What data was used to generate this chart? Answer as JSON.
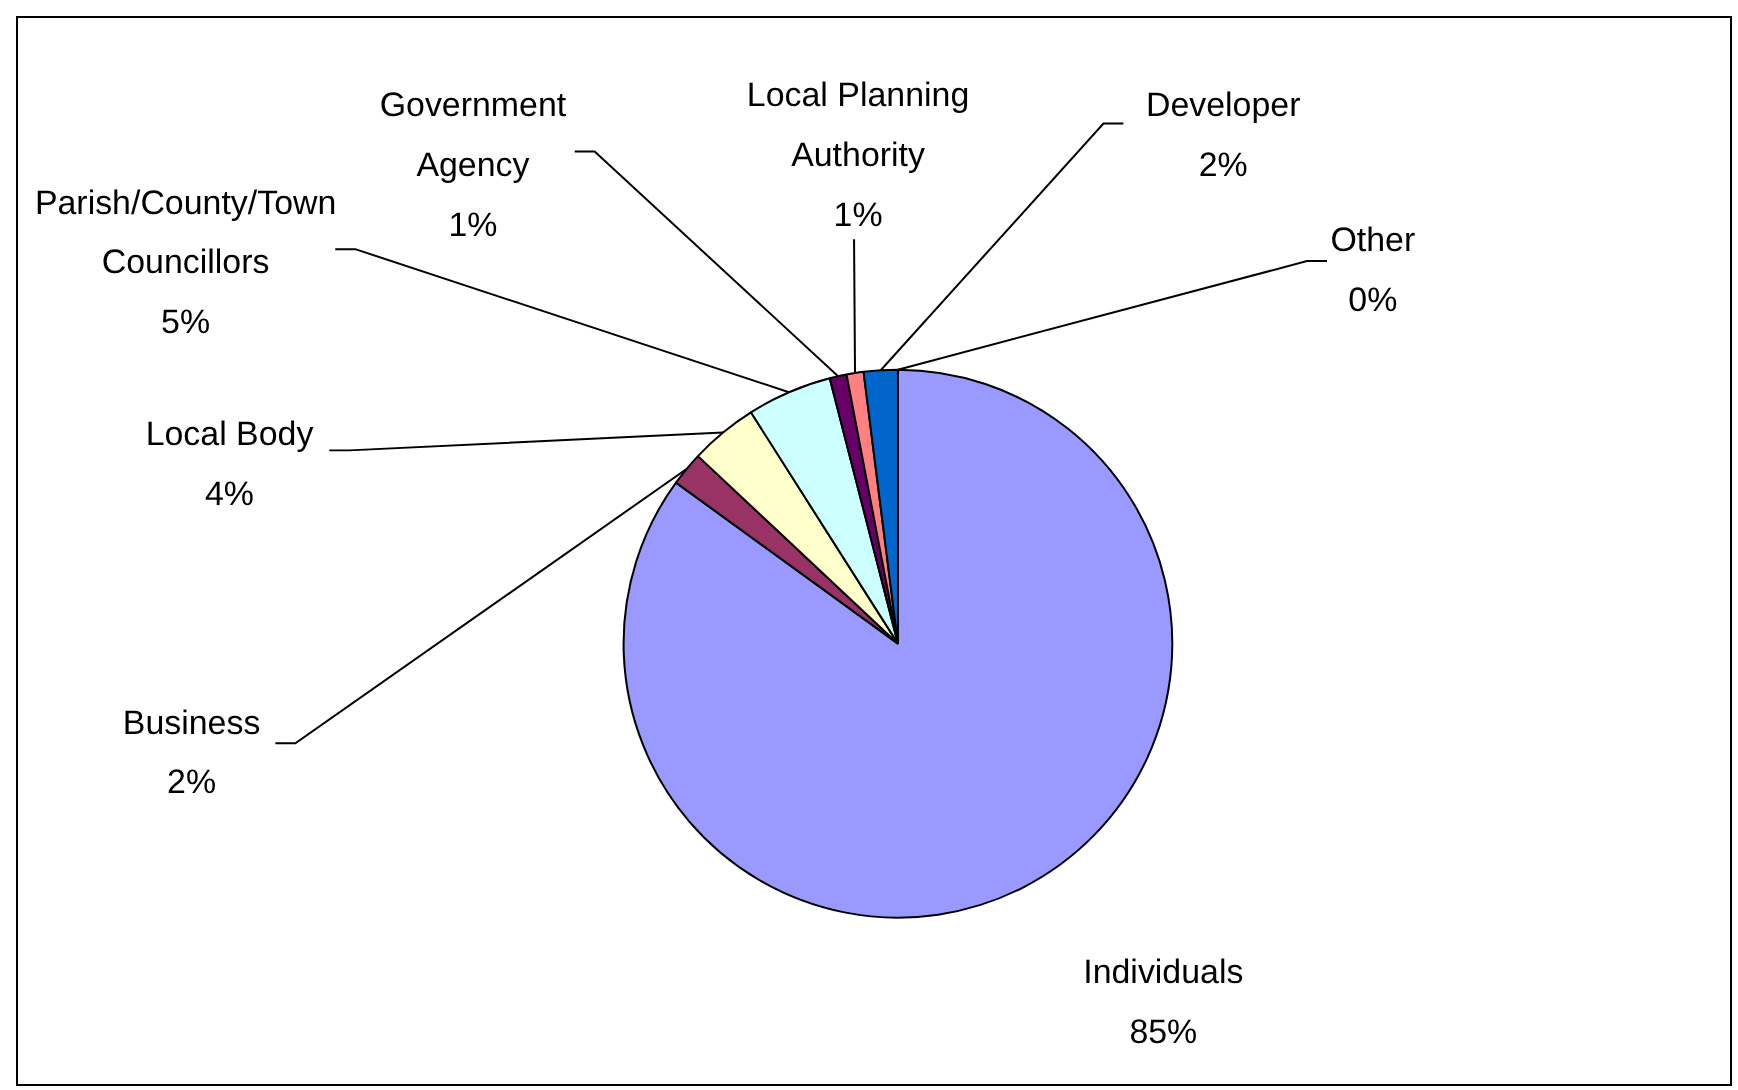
{
  "chart_data": {
    "type": "pie",
    "categories": [
      "Individuals",
      "Business",
      "Local Body",
      "Parish/County/Town Councillors",
      "Government Agency",
      "Local Planning Authority",
      "Developer",
      "Other"
    ],
    "values": [
      85,
      2,
      4,
      5,
      1,
      1,
      2,
      0
    ],
    "colors": [
      "#9999ff",
      "#993366",
      "#ffffcc",
      "#ccffff",
      "#660066",
      "#ff8080",
      "#0066cc",
      "#ccccff"
    ],
    "value_labels": [
      "85%",
      "2%",
      "4%",
      "5%",
      "1%",
      "1%",
      "2%",
      "0%"
    ],
    "legend": false
  }
}
